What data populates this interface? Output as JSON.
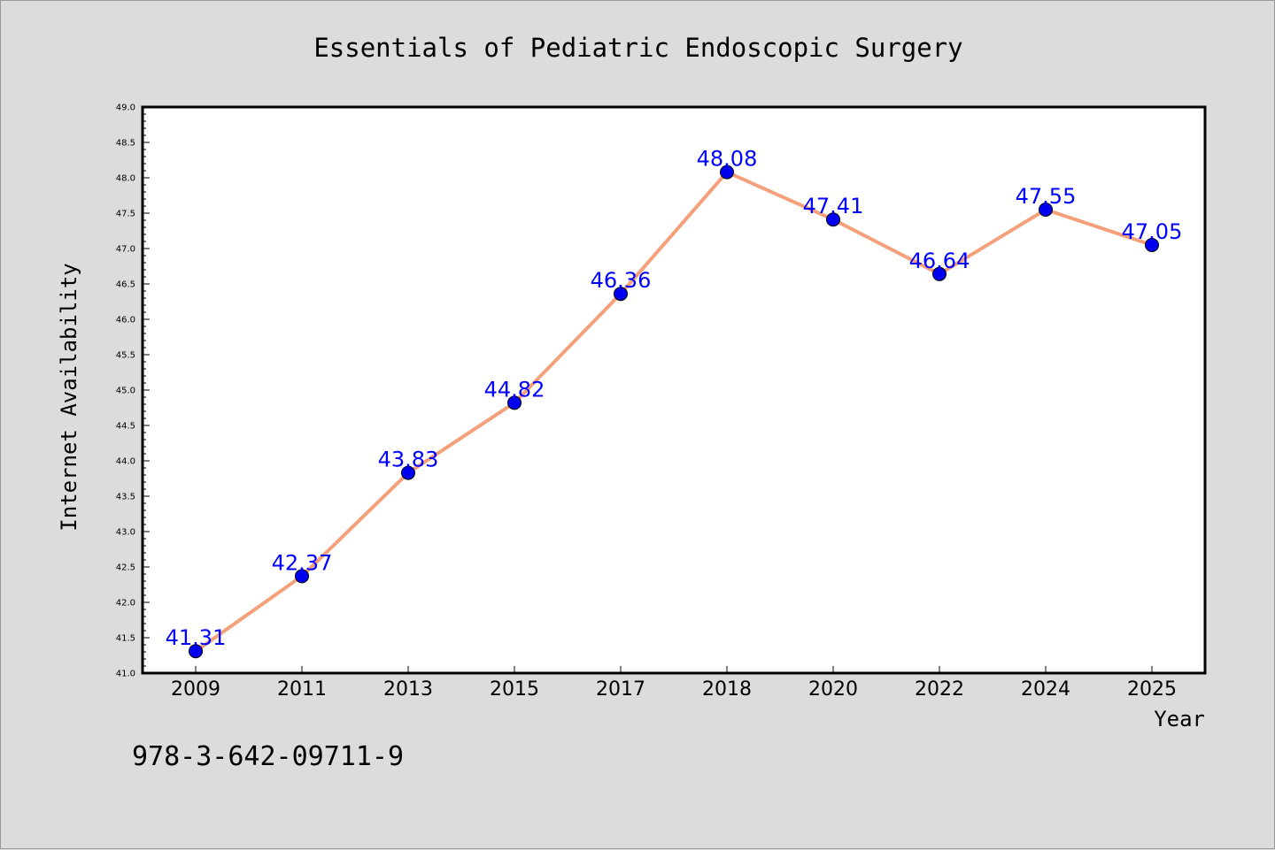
{
  "chart_data": {
    "type": "line",
    "title": "Essentials of Pediatric Endoscopic Surgery",
    "xlabel": "Year",
    "ylabel": "Internet Availability",
    "categories": [
      "2009",
      "2011",
      "2013",
      "2015",
      "2017",
      "2018",
      "2020",
      "2022",
      "2024",
      "2025"
    ],
    "series": [
      {
        "values": [
          41.31,
          42.37,
          43.83,
          44.82,
          46.36,
          48.08,
          47.41,
          46.64,
          47.55,
          47.05
        ],
        "data_labels": [
          "41.31",
          "42.37",
          "43.83",
          "44.82",
          "46.36",
          "48.08",
          "47.41",
          "46.64",
          "47.55",
          "47.05"
        ],
        "line_color": "#f4a07a",
        "marker_color": "#0000ee"
      }
    ],
    "ylim": [
      41.0,
      49.0
    ],
    "yticks": [
      "41.0",
      "41.5",
      "42.0",
      "42.5",
      "43.0",
      "43.5",
      "44.0",
      "44.5",
      "45.0",
      "45.5",
      "46.0",
      "46.5",
      "47.0",
      "47.5",
      "48.0",
      "48.5",
      "49.0"
    ],
    "grid": false,
    "legend": "none"
  },
  "footer": {
    "isbn": "978-3-642-09711-9"
  },
  "colors": {
    "background": "#dcdcdc",
    "plot_background": "#ffffff",
    "data_label": "#0000ff"
  }
}
